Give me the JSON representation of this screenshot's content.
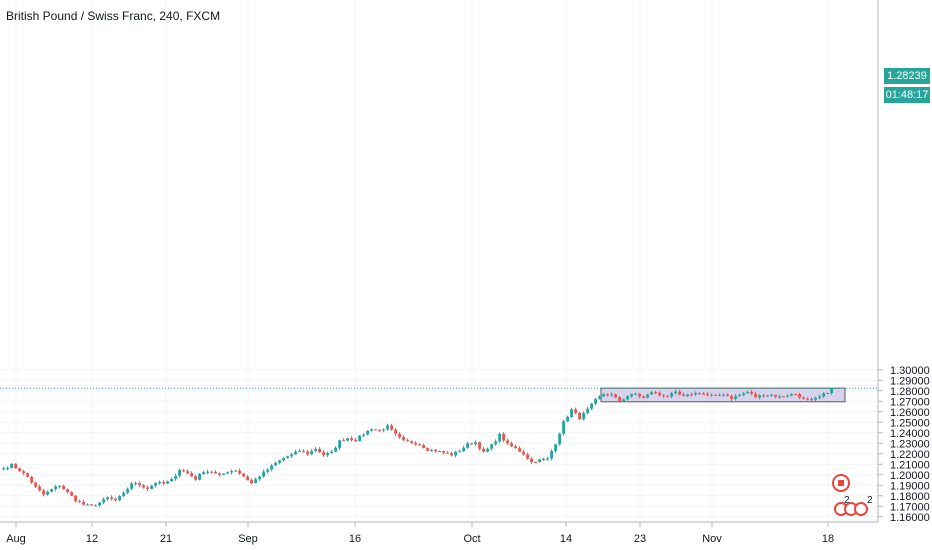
{
  "header": {
    "title": "British Pound / Swiss Franc, 240, FXCM"
  },
  "price_tag": {
    "value": "1.28239",
    "timer": "01:48:17"
  },
  "events": {
    "count_label": "2"
  },
  "colors": {
    "up": "#26a69a",
    "down": "#ef5350",
    "box_fill": "#d1cbe9",
    "box_stroke": "#5a5a5a",
    "price_line": "#26a69a",
    "grid": "#f0f3fa",
    "event_red": "#e8453c"
  },
  "chart_data": {
    "type": "candlestick",
    "title": "British Pound / Swiss Franc, 240, FXCM",
    "ylim": [
      1.155,
      1.305
    ],
    "y_ticks": [
      "1.30000",
      "1.29000",
      "1.28000",
      "1.27000",
      "1.26000",
      "1.25000",
      "1.24000",
      "1.23000",
      "1.22000",
      "1.21000",
      "1.20000",
      "1.19000",
      "1.18000",
      "1.17000",
      "1.16000"
    ],
    "x_ticks": [
      "Aug",
      "12",
      "21",
      "Sep",
      "16",
      "Oct",
      "14",
      "23",
      "Nov",
      "18"
    ],
    "last_price": 1.28239,
    "rectangle": {
      "from": "Oct 17",
      "to": "Nov 18",
      "top": 1.2825,
      "bottom": 1.2695
    },
    "anchors": [
      [
        0,
        1.206
      ],
      [
        2,
        1.2095
      ],
      [
        4,
        1.204
      ],
      [
        6,
        1.198
      ],
      [
        8,
        1.188
      ],
      [
        10,
        1.181
      ],
      [
        12,
        1.186
      ],
      [
        14,
        1.19
      ],
      [
        16,
        1.183
      ],
      [
        18,
        1.176
      ],
      [
        20,
        1.1715
      ],
      [
        22,
        1.17
      ],
      [
        24,
        1.1735
      ],
      [
        26,
        1.178
      ],
      [
        28,
        1.1755
      ],
      [
        30,
        1.182
      ],
      [
        32,
        1.192
      ],
      [
        34,
        1.1905
      ],
      [
        36,
        1.187
      ],
      [
        38,
        1.1925
      ],
      [
        40,
        1.1915
      ],
      [
        42,
        1.195
      ],
      [
        44,
        1.205
      ],
      [
        46,
        1.2015
      ],
      [
        48,
        1.196
      ],
      [
        50,
        1.2035
      ],
      [
        52,
        1.203
      ],
      [
        54,
        1.199
      ],
      [
        56,
        1.203
      ],
      [
        58,
        1.2045
      ],
      [
        60,
        1.1985
      ],
      [
        62,
        1.192
      ],
      [
        64,
        1.199
      ],
      [
        66,
        1.205
      ],
      [
        68,
        1.211
      ],
      [
        70,
        1.216
      ],
      [
        72,
        1.219
      ],
      [
        74,
        1.223
      ],
      [
        76,
        1.22
      ],
      [
        78,
        1.225
      ],
      [
        80,
        1.219
      ],
      [
        82,
        1.221
      ],
      [
        84,
        1.232
      ],
      [
        86,
        1.235
      ],
      [
        88,
        1.233
      ],
      [
        90,
        1.239
      ],
      [
        92,
        1.244
      ],
      [
        94,
        1.242
      ],
      [
        96,
        1.246
      ],
      [
        98,
        1.238
      ],
      [
        100,
        1.232
      ],
      [
        102,
        1.231
      ],
      [
        104,
        1.229
      ],
      [
        106,
        1.224
      ],
      [
        108,
        1.223
      ],
      [
        110,
        1.221
      ],
      [
        112,
        1.219
      ],
      [
        114,
        1.223
      ],
      [
        116,
        1.229
      ],
      [
        118,
        1.231
      ],
      [
        120,
        1.221
      ],
      [
        122,
        1.228
      ],
      [
        124,
        1.238
      ],
      [
        126,
        1.229
      ],
      [
        128,
        1.225
      ],
      [
        130,
        1.22
      ],
      [
        132,
        1.212
      ],
      [
        134,
        1.214
      ],
      [
        136,
        1.215
      ],
      [
        138,
        1.23
      ],
      [
        140,
        1.25
      ],
      [
        142,
        1.262
      ],
      [
        144,
        1.254
      ],
      [
        146,
        1.262
      ],
      [
        148,
        1.271
      ],
      [
        150,
        1.277
      ],
      [
        152,
        1.276
      ],
      [
        154,
        1.27
      ],
      [
        156,
        1.275
      ],
      [
        158,
        1.277
      ],
      [
        160,
        1.273
      ],
      [
        162,
        1.279
      ],
      [
        164,
        1.276
      ],
      [
        166,
        1.275
      ],
      [
        168,
        1.278
      ],
      [
        170,
        1.274
      ],
      [
        172,
        1.277
      ],
      [
        174,
        1.278
      ],
      [
        176,
        1.276
      ],
      [
        178,
        1.275
      ],
      [
        180,
        1.277
      ],
      [
        182,
        1.273
      ],
      [
        184,
        1.276
      ],
      [
        186,
        1.279
      ],
      [
        188,
        1.274
      ],
      [
        190,
        1.276
      ],
      [
        192,
        1.276
      ],
      [
        194,
        1.274
      ],
      [
        196,
        1.276
      ],
      [
        198,
        1.277
      ],
      [
        200,
        1.272
      ],
      [
        202,
        1.2705
      ],
      [
        204,
        1.274
      ],
      [
        206,
        1.279
      ],
      [
        207,
        1.2824
      ]
    ]
  }
}
